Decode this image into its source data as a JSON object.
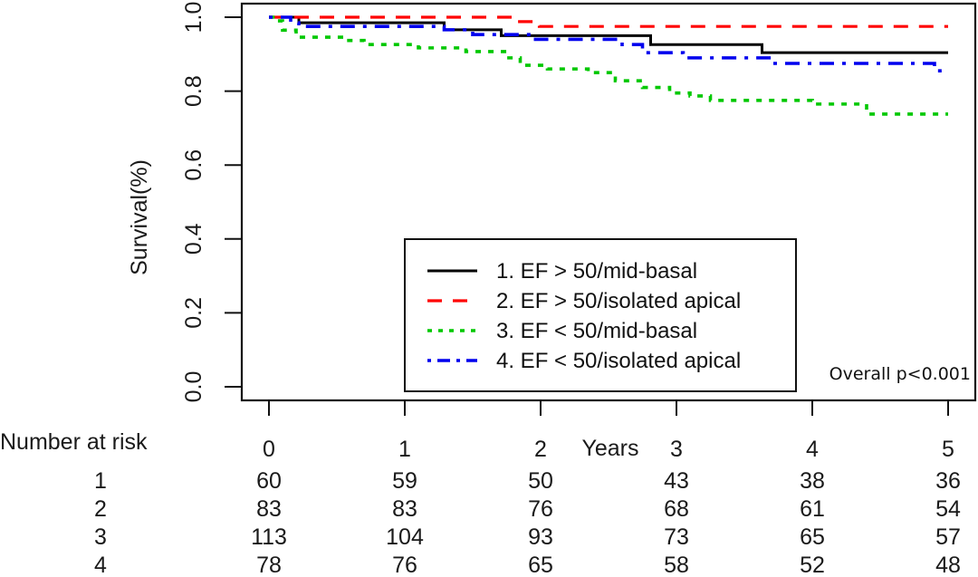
{
  "chart_data": {
    "type": "line",
    "subtype": "kaplan-meier step",
    "title": "",
    "xlabel": "Years",
    "ylabel": "Survival(%)",
    "xlim": [
      0,
      5
    ],
    "ylim": [
      0,
      1
    ],
    "xticks": [
      "0",
      "1",
      "2",
      "3",
      "4",
      "5"
    ],
    "yticks": [
      "0.0",
      "0.2",
      "0.4",
      "0.6",
      "0.8",
      "1.0"
    ],
    "grid": false,
    "legend_position": "bottom-center",
    "annotation": "Overall p<0.001",
    "series": [
      {
        "name": "1. EF > 50/mid-basal",
        "color": "#000000",
        "linestyle": "solid",
        "steps": [
          [
            0,
            1.0
          ],
          [
            0.22,
            0.985
          ],
          [
            1.29,
            0.966
          ],
          [
            1.71,
            0.95
          ],
          [
            2.81,
            0.926
          ],
          [
            3.63,
            0.904
          ],
          [
            5.0,
            0.904
          ]
        ]
      },
      {
        "name": "2. EF > 50/isolated apical",
        "color": "#ff0000",
        "linestyle": "dashed",
        "steps": [
          [
            0,
            1.0
          ],
          [
            1.83,
            0.988
          ],
          [
            1.99,
            0.975
          ],
          [
            5.0,
            0.975
          ]
        ]
      },
      {
        "name": "3. EF < 50/mid-basal",
        "color": "#00c800",
        "linestyle": "dotted",
        "steps": [
          [
            0,
            1.0
          ],
          [
            0.03,
            0.99
          ],
          [
            0.1,
            0.965
          ],
          [
            0.2,
            0.946
          ],
          [
            0.55,
            0.937
          ],
          [
            0.7,
            0.926
          ],
          [
            1.1,
            0.917
          ],
          [
            1.45,
            0.907
          ],
          [
            1.75,
            0.89
          ],
          [
            1.85,
            0.87
          ],
          [
            2.05,
            0.86
          ],
          [
            2.35,
            0.85
          ],
          [
            2.55,
            0.828
          ],
          [
            2.75,
            0.81
          ],
          [
            2.95,
            0.795
          ],
          [
            3.1,
            0.787
          ],
          [
            3.25,
            0.775
          ],
          [
            4.0,
            0.765
          ],
          [
            4.4,
            0.738
          ],
          [
            5.0,
            0.738
          ]
        ]
      },
      {
        "name": "4. EF < 50/isolated apical",
        "color": "#0000ee",
        "linestyle": "dashdot",
        "steps": [
          [
            0,
            1.0
          ],
          [
            0.16,
            0.985
          ],
          [
            0.22,
            0.975
          ],
          [
            1.29,
            0.966
          ],
          [
            1.5,
            0.953
          ],
          [
            1.93,
            0.94
          ],
          [
            2.6,
            0.926
          ],
          [
            2.75,
            0.904
          ],
          [
            3.05,
            0.89
          ],
          [
            3.7,
            0.875
          ],
          [
            4.9,
            0.855
          ],
          [
            5.0,
            0.855
          ]
        ]
      }
    ],
    "risk_table": {
      "title": "Number at risk",
      "time_labels": [
        "0",
        "1",
        "2",
        "3",
        "4",
        "5"
      ],
      "rows": [
        {
          "group": "1",
          "values": [
            "60",
            "59",
            "50",
            "43",
            "38",
            "36"
          ]
        },
        {
          "group": "2",
          "values": [
            "83",
            "83",
            "76",
            "68",
            "61",
            "54"
          ]
        },
        {
          "group": "3",
          "values": [
            "113",
            "104",
            "93",
            "73",
            "65",
            "57"
          ]
        },
        {
          "group": "4",
          "values": [
            "78",
            "76",
            "65",
            "58",
            "52",
            "48"
          ]
        }
      ]
    }
  }
}
